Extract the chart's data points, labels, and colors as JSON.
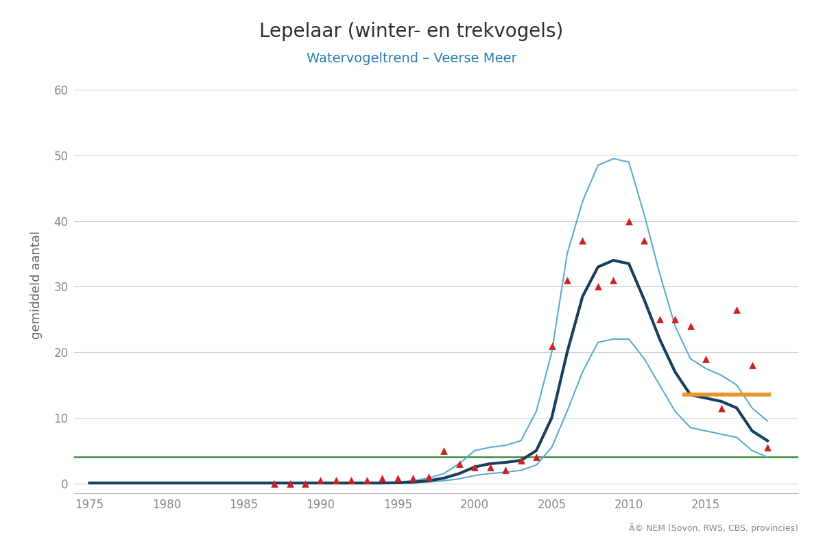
{
  "title": "Lepelaar (winter- en trekvogels)",
  "subtitle": "Watervogeltrend – Veerse Meer",
  "ylabel": "gemiddeld aantal",
  "title_color": "#2d2d2d",
  "subtitle_color": "#2a7db5",
  "ylabel_color": "#666666",
  "background_color": "#ffffff",
  "grid_color": "#d0d0d0",
  "axis_color": "#bbbbbb",
  "tick_color": "#888888",
  "copyright_text": "Ã© NEM (Sovon, RWS, CBS, provincies)",
  "xlim": [
    1974,
    2021
  ],
  "ylim": [
    -1.5,
    62
  ],
  "yticks": [
    0,
    10,
    20,
    30,
    40,
    50,
    60
  ],
  "xticks": [
    1975,
    1980,
    1985,
    1990,
    1995,
    2000,
    2005,
    2010,
    2015
  ],
  "trend_x": [
    1975,
    1976,
    1977,
    1978,
    1979,
    1980,
    1981,
    1982,
    1983,
    1984,
    1985,
    1986,
    1987,
    1988,
    1989,
    1990,
    1991,
    1992,
    1993,
    1994,
    1995,
    1996,
    1997,
    1998,
    1999,
    2000,
    2001,
    2002,
    2003,
    2004,
    2005,
    2006,
    2007,
    2008,
    2009,
    2010,
    2011,
    2012,
    2013,
    2014,
    2015,
    2016,
    2017,
    2018,
    2019
  ],
  "trend_y": [
    0.05,
    0.05,
    0.05,
    0.05,
    0.05,
    0.05,
    0.05,
    0.05,
    0.05,
    0.05,
    0.05,
    0.05,
    0.05,
    0.05,
    0.05,
    0.05,
    0.05,
    0.05,
    0.05,
    0.05,
    0.1,
    0.2,
    0.4,
    0.8,
    1.5,
    2.5,
    3.0,
    3.2,
    3.5,
    5.0,
    10.0,
    20.0,
    28.5,
    33.0,
    34.0,
    33.5,
    28.0,
    22.0,
    17.0,
    13.5,
    13.0,
    12.5,
    11.5,
    8.0,
    6.5
  ],
  "ci_upper": [
    0.1,
    0.1,
    0.1,
    0.1,
    0.1,
    0.1,
    0.1,
    0.1,
    0.1,
    0.1,
    0.1,
    0.1,
    0.1,
    0.1,
    0.1,
    0.1,
    0.1,
    0.1,
    0.1,
    0.1,
    0.2,
    0.4,
    0.8,
    1.5,
    3.0,
    5.0,
    5.5,
    5.8,
    6.5,
    11.0,
    20.0,
    35.0,
    43.0,
    48.5,
    49.5,
    49.0,
    41.0,
    32.0,
    24.0,
    19.0,
    17.5,
    16.5,
    15.0,
    11.5,
    9.5
  ],
  "ci_lower": [
    0.02,
    0.02,
    0.02,
    0.02,
    0.02,
    0.02,
    0.02,
    0.02,
    0.02,
    0.02,
    0.02,
    0.02,
    0.02,
    0.02,
    0.02,
    0.02,
    0.02,
    0.02,
    0.02,
    0.02,
    0.05,
    0.1,
    0.2,
    0.4,
    0.7,
    1.2,
    1.5,
    1.7,
    2.0,
    2.8,
    5.5,
    11.0,
    17.0,
    21.5,
    22.0,
    22.0,
    19.0,
    15.0,
    11.0,
    8.5,
    8.0,
    7.5,
    7.0,
    5.0,
    4.0
  ],
  "scatter_x": [
    1987,
    1988,
    1989,
    1990,
    1991,
    1992,
    1993,
    1994,
    1995,
    1996,
    1997,
    1998,
    1999,
    2000,
    2001,
    2002,
    2003,
    2004,
    2005,
    2006,
    2007,
    2008,
    2009,
    2010,
    2011,
    2012,
    2013,
    2014,
    2015,
    2016,
    2017,
    2018,
    2019
  ],
  "scatter_y": [
    0.0,
    0.0,
    0.0,
    0.5,
    0.5,
    0.5,
    0.5,
    0.8,
    0.8,
    0.8,
    1.0,
    5.0,
    3.0,
    2.5,
    2.5,
    2.0,
    3.5,
    4.0,
    21.0,
    31.0,
    37.0,
    30.0,
    31.0,
    40.0,
    37.0,
    25.0,
    25.0,
    24.0,
    19.0,
    11.5,
    26.5,
    18.0,
    5.5
  ],
  "green_line_y": 4.0,
  "orange_line_x": [
    2013.5,
    2019.2
  ],
  "orange_line_y": [
    13.5,
    13.5
  ],
  "trend_color": "#1a3f5c",
  "ci_color": "#5aabcf",
  "scatter_color": "#cc2222",
  "green_color": "#3a8a3a",
  "orange_color": "#e8952a",
  "trend_linewidth": 3.0,
  "ci_linewidth": 1.5,
  "green_linewidth": 1.8,
  "orange_linewidth": 4.0,
  "title_fontsize": 20,
  "subtitle_fontsize": 14,
  "tick_fontsize": 12,
  "ylabel_fontsize": 13
}
